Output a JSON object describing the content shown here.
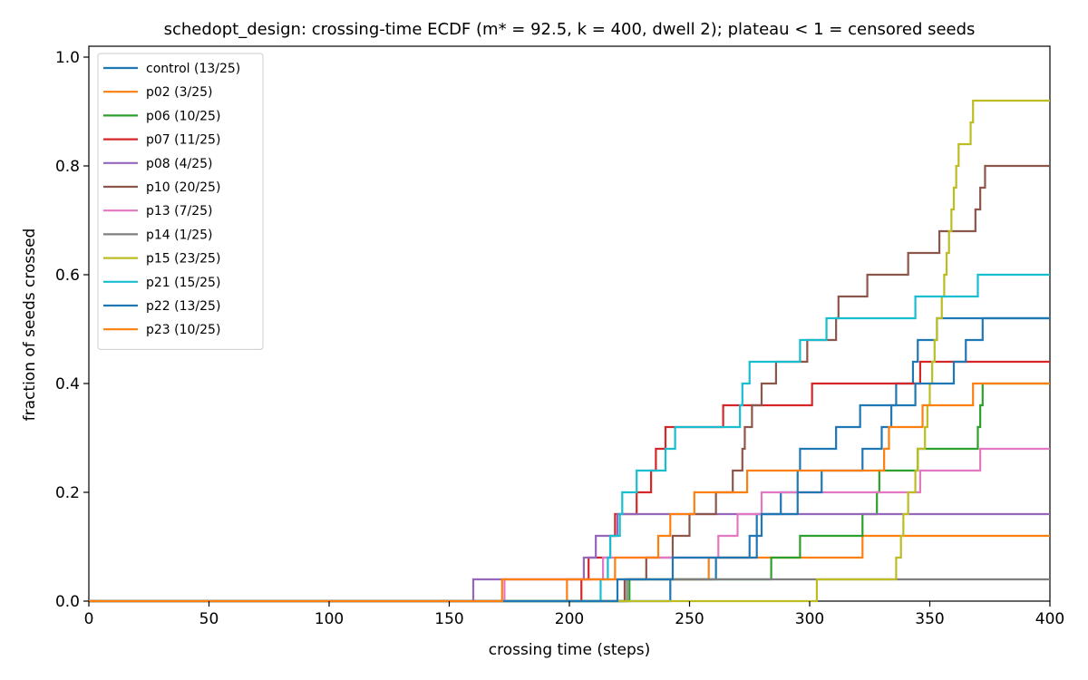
{
  "chart_data": {
    "type": "line",
    "step": true,
    "title": "schedopt_design: crossing-time ECDF (m* = 92.5, k = 400, dwell 2); plateau < 1 = censored seeds",
    "xlabel": "crossing time (steps)",
    "ylabel": "fraction of seeds crossed",
    "xlim": [
      0,
      400
    ],
    "ylim": [
      0,
      1.02
    ],
    "xticks": [
      0,
      50,
      100,
      150,
      200,
      250,
      300,
      350,
      400
    ],
    "yticks": [
      0.0,
      0.2,
      0.4,
      0.6,
      0.8,
      1.0
    ],
    "xtick_labels": [
      "0",
      "50",
      "100",
      "150",
      "200",
      "250",
      "300",
      "350",
      "400"
    ],
    "ytick_labels": [
      "0.0",
      "0.2",
      "0.4",
      "0.6",
      "0.8",
      "1.0"
    ],
    "legend_position": "upper-left",
    "grid": false,
    "series": [
      {
        "name": "control (13/25)",
        "color": "#1f77b4",
        "crossings": [
          242,
          261,
          275,
          278,
          288,
          295,
          296,
          311,
          321,
          336,
          343,
          345,
          353
        ]
      },
      {
        "name": "p02 (3/25)",
        "color": "#ff7f0e",
        "crossings": [
          199,
          258,
          322
        ]
      },
      {
        "name": "p06 (10/25)",
        "color": "#2ca02c",
        "crossings": [
          225,
          284,
          296,
          322,
          328,
          329,
          345,
          370,
          371,
          372
        ]
      },
      {
        "name": "p07 (11/25)",
        "color": "#d62728",
        "crossings": [
          205,
          208,
          217,
          219,
          228,
          234,
          236,
          240,
          264,
          301,
          346
        ]
      },
      {
        "name": "p08 (4/25)",
        "color": "#9467bd",
        "crossings": [
          160,
          206,
          211,
          220
        ]
      },
      {
        "name": "p10 (20/25)",
        "color": "#8c564b",
        "crossings": [
          223,
          232,
          243,
          250,
          261,
          268,
          272,
          273,
          276,
          280,
          286,
          299,
          311,
          312,
          324,
          341,
          354,
          369,
          371,
          373
        ]
      },
      {
        "name": "p13 (7/25)",
        "color": "#e377c2",
        "crossings": [
          173,
          214,
          262,
          270,
          280,
          346,
          371
        ]
      },
      {
        "name": "p14 (1/25)",
        "color": "#7f7f7f",
        "crossings": [
          224
        ]
      },
      {
        "name": "p15 (23/25)",
        "color": "#bcbd22",
        "crossings": [
          303,
          336,
          338,
          339,
          341,
          344,
          345,
          348,
          349,
          350,
          351,
          352,
          353,
          355,
          356,
          357,
          358,
          359,
          360,
          361,
          362,
          367,
          368
        ]
      },
      {
        "name": "p21 (15/25)",
        "color": "#17becf",
        "crossings": [
          213,
          216,
          217,
          221,
          222,
          228,
          240,
          244,
          271,
          272,
          275,
          296,
          307,
          344,
          370
        ]
      },
      {
        "name": "p22 (13/25)",
        "color": "#1f77b4",
        "crossings": [
          220,
          243,
          278,
          280,
          295,
          305,
          322,
          330,
          334,
          344,
          360,
          365,
          372
        ]
      },
      {
        "name": "p23 (10/25)",
        "color": "#ff7f0e",
        "crossings": [
          172,
          219,
          237,
          242,
          252,
          274,
          331,
          333,
          347,
          368
        ]
      }
    ],
    "n_seeds": 25
  }
}
